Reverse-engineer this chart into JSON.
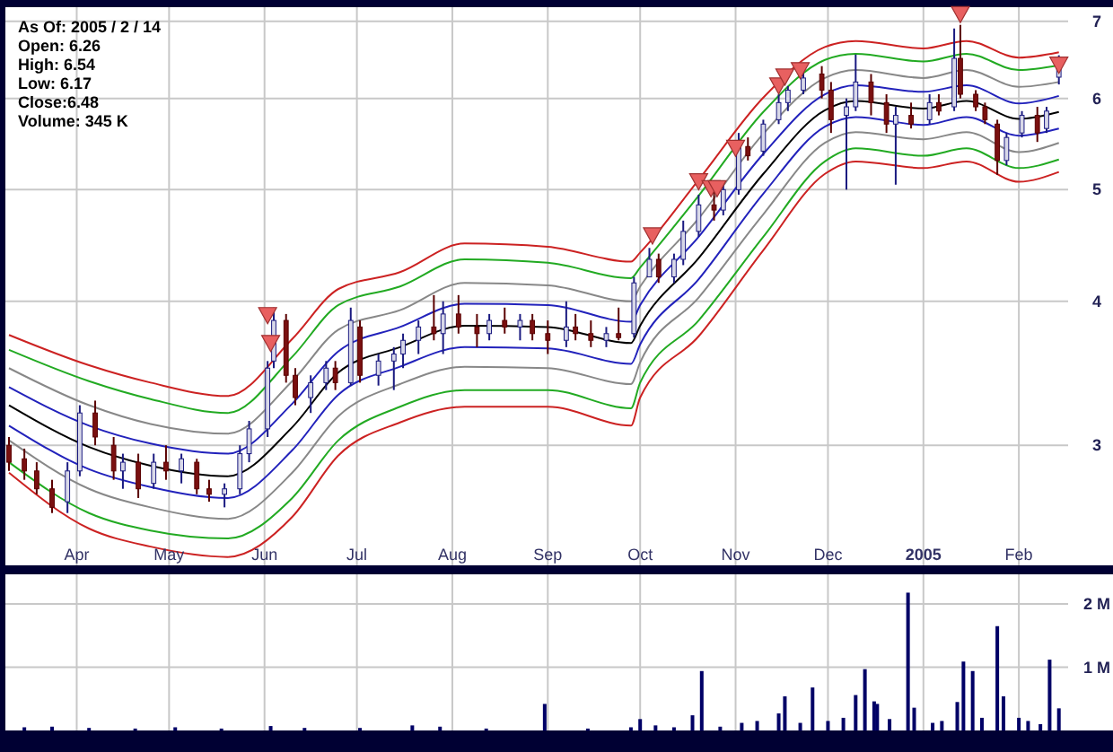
{
  "chart_data": [
    {
      "type": "candlestick",
      "annotations": [
        "As Of: 2005 / 2 / 14",
        "Open: 6.26",
        "High: 6.54",
        "Low: 6.17",
        "Close:6.48",
        "Volume: 345 K"
      ],
      "x": [
        "2004-03-10",
        "2004-03-15",
        "2004-03-19",
        "2004-03-24",
        "2004-03-29",
        "2004-04-02",
        "2004-04-07",
        "2004-04-13",
        "2004-04-16",
        "2004-04-21",
        "2004-04-26",
        "2004-04-30",
        "2004-05-05",
        "2004-05-10",
        "2004-05-14",
        "2004-05-19",
        "2004-05-24",
        "2004-05-27",
        "2004-06-02",
        "2004-06-04",
        "2004-06-08",
        "2004-06-11",
        "2004-06-16",
        "2004-06-21",
        "2004-06-24",
        "2004-06-29",
        "2004-07-02",
        "2004-07-08",
        "2004-07-13",
        "2004-07-16",
        "2004-07-21",
        "2004-07-26",
        "2004-07-29",
        "2004-08-03",
        "2004-08-09",
        "2004-08-13",
        "2004-08-18",
        "2004-08-23",
        "2004-08-27",
        "2004-09-01",
        "2004-09-07",
        "2004-09-10",
        "2004-09-15",
        "2004-09-20",
        "2004-09-24",
        "2004-09-29",
        "2004-10-04",
        "2004-10-07",
        "2004-10-12",
        "2004-10-15",
        "2004-10-20",
        "2004-10-25",
        "2004-10-28",
        "2004-11-02",
        "2004-11-05",
        "2004-11-10",
        "2004-11-15",
        "2004-11-18",
        "2004-11-23",
        "2004-11-29",
        "2004-12-02",
        "2004-12-07",
        "2004-12-10",
        "2004-12-15",
        "2004-12-20",
        "2004-12-23",
        "2004-12-28",
        "2005-01-03",
        "2005-01-06",
        "2005-01-11",
        "2005-01-13",
        "2005-01-18",
        "2005-01-21",
        "2005-01-25",
        "2005-01-28",
        "2005-02-02",
        "2005-02-07",
        "2005-02-10",
        "2005-02-14"
      ],
      "ohlc": [
        [
          3.0,
          3.05,
          2.85,
          2.9
        ],
        [
          2.92,
          2.98,
          2.8,
          2.85
        ],
        [
          2.85,
          2.9,
          2.72,
          2.75
        ],
        [
          2.75,
          2.8,
          2.62,
          2.65
        ],
        [
          2.68,
          2.9,
          2.62,
          2.85
        ],
        [
          2.85,
          3.25,
          2.82,
          3.2
        ],
        [
          3.2,
          3.28,
          3.0,
          3.05
        ],
        [
          3.0,
          3.05,
          2.8,
          2.85
        ],
        [
          2.85,
          2.95,
          2.75,
          2.9
        ],
        [
          2.9,
          2.95,
          2.7,
          2.75
        ],
        [
          2.78,
          2.95,
          2.75,
          2.9
        ],
        [
          2.9,
          3.0,
          2.8,
          2.85
        ],
        [
          2.85,
          2.95,
          2.78,
          2.92
        ],
        [
          2.9,
          2.92,
          2.72,
          2.75
        ],
        [
          2.75,
          2.8,
          2.68,
          2.72
        ],
        [
          2.72,
          2.78,
          2.65,
          2.75
        ],
        [
          2.75,
          3.0,
          2.72,
          2.95
        ],
        [
          2.95,
          3.15,
          2.9,
          3.1
        ],
        [
          3.1,
          3.55,
          3.05,
          3.5
        ],
        [
          3.55,
          3.95,
          3.5,
          3.85
        ],
        [
          3.85,
          3.9,
          3.4,
          3.45
        ],
        [
          3.45,
          3.5,
          3.25,
          3.3
        ],
        [
          3.3,
          3.45,
          3.2,
          3.4
        ],
        [
          3.4,
          3.55,
          3.35,
          3.5
        ],
        [
          3.5,
          3.55,
          3.35,
          3.4
        ],
        [
          3.4,
          3.95,
          3.38,
          3.85
        ],
        [
          3.8,
          3.85,
          3.4,
          3.45
        ],
        [
          3.45,
          3.6,
          3.38,
          3.55
        ],
        [
          3.55,
          3.65,
          3.35,
          3.6
        ],
        [
          3.6,
          3.75,
          3.5,
          3.7
        ],
        [
          3.7,
          3.85,
          3.6,
          3.8
        ],
        [
          3.8,
          4.05,
          3.7,
          3.75
        ],
        [
          3.75,
          4.0,
          3.6,
          3.9
        ],
        [
          3.9,
          4.05,
          3.75,
          3.8
        ],
        [
          3.8,
          3.9,
          3.65,
          3.75
        ],
        [
          3.75,
          3.9,
          3.7,
          3.85
        ],
        [
          3.85,
          3.95,
          3.75,
          3.8
        ],
        [
          3.8,
          3.9,
          3.7,
          3.85
        ],
        [
          3.85,
          3.9,
          3.7,
          3.75
        ],
        [
          3.75,
          3.85,
          3.6,
          3.7
        ],
        [
          3.7,
          4.0,
          3.65,
          3.8
        ],
        [
          3.8,
          3.9,
          3.7,
          3.75
        ],
        [
          3.75,
          3.85,
          3.65,
          3.7
        ],
        [
          3.7,
          3.8,
          3.65,
          3.75
        ],
        [
          3.75,
          3.95,
          3.7,
          3.72
        ],
        [
          3.75,
          4.2,
          3.72,
          4.15
        ],
        [
          4.2,
          4.45,
          4.2,
          4.35
        ],
        [
          4.35,
          4.4,
          4.15,
          4.2
        ],
        [
          4.2,
          4.4,
          4.15,
          4.35
        ],
        [
          4.35,
          4.7,
          4.3,
          4.6
        ],
        [
          4.6,
          4.95,
          4.55,
          4.85
        ],
        [
          4.85,
          5.0,
          4.7,
          4.8
        ],
        [
          4.8,
          5.05,
          4.75,
          5.0
        ],
        [
          5.0,
          5.6,
          4.95,
          5.45
        ],
        [
          5.45,
          5.55,
          5.3,
          5.35
        ],
        [
          5.4,
          5.75,
          5.35,
          5.7
        ],
        [
          5.75,
          6.05,
          5.7,
          5.95
        ],
        [
          5.95,
          6.15,
          5.85,
          6.1
        ],
        [
          6.1,
          6.35,
          6.05,
          6.25
        ],
        [
          6.3,
          6.4,
          6.0,
          6.1
        ],
        [
          6.1,
          6.2,
          5.6,
          5.75
        ],
        [
          5.8,
          6.0,
          5.0,
          5.9
        ],
        [
          5.9,
          6.55,
          5.85,
          6.2
        ],
        [
          6.2,
          6.3,
          5.8,
          5.95
        ],
        [
          5.95,
          6.05,
          5.6,
          5.7
        ],
        [
          5.7,
          5.9,
          5.05,
          5.8
        ],
        [
          5.8,
          5.95,
          5.65,
          5.7
        ],
        [
          5.75,
          6.05,
          5.7,
          5.95
        ],
        [
          5.95,
          6.05,
          5.8,
          5.85
        ],
        [
          5.9,
          6.9,
          5.85,
          6.5
        ],
        [
          6.5,
          6.95,
          6.0,
          6.05
        ],
        [
          6.05,
          6.1,
          5.85,
          5.9
        ],
        [
          5.9,
          5.95,
          5.7,
          5.75
        ],
        [
          5.7,
          5.75,
          5.15,
          5.3
        ],
        [
          5.3,
          5.6,
          5.25,
          5.55
        ],
        [
          5.6,
          5.85,
          5.55,
          5.8
        ],
        [
          5.8,
          5.9,
          5.5,
          5.6
        ],
        [
          5.65,
          5.9,
          5.6,
          5.85
        ],
        [
          6.26,
          6.54,
          6.17,
          6.48
        ]
      ],
      "series": [
        {
          "type": "line",
          "color": "#cc2222",
          "x": [
            "2004-03-10",
            "2004-04-05",
            "2004-04-25",
            "2004-05-20",
            "2004-06-10",
            "2004-06-25",
            "2004-07-15",
            "2004-08-05",
            "2004-09-01",
            "2004-09-28",
            "2004-10-01",
            "2004-10-20",
            "2004-11-10",
            "2004-11-30",
            "2004-12-10",
            "2005-01-01",
            "2005-01-15",
            "2005-02-01",
            "2005-02-14"
          ],
          "values": [
            3.74,
            3.52,
            3.4,
            3.31,
            3.71,
            4.1,
            4.24,
            4.49,
            4.46,
            4.33,
            4.41,
            5.1,
            6.01,
            6.65,
            6.73,
            6.63,
            6.73,
            6.51,
            6.58
          ]
        },
        {
          "type": "line",
          "color": "#22aa22",
          "x": [
            "2004-03-10",
            "2004-04-05",
            "2004-04-25",
            "2004-05-20",
            "2004-06-10",
            "2004-06-25",
            "2004-07-15",
            "2004-08-05",
            "2004-09-01",
            "2004-09-28",
            "2004-10-01",
            "2004-10-20",
            "2004-11-10",
            "2004-11-30",
            "2004-12-10",
            "2005-01-01",
            "2005-01-15",
            "2005-02-01",
            "2005-02-14"
          ],
          "values": [
            3.63,
            3.41,
            3.29,
            3.2,
            3.58,
            3.97,
            4.12,
            4.35,
            4.32,
            4.19,
            4.28,
            4.94,
            5.84,
            6.48,
            6.56,
            6.46,
            6.56,
            6.35,
            6.41
          ]
        },
        {
          "type": "line",
          "color": "#888888",
          "x": [
            "2004-03-10",
            "2004-04-05",
            "2004-04-25",
            "2004-05-20",
            "2004-06-10",
            "2004-06-25",
            "2004-07-15",
            "2004-08-05",
            "2004-09-01",
            "2004-09-28",
            "2004-10-01",
            "2004-10-20",
            "2004-11-10",
            "2004-11-30",
            "2004-12-10",
            "2005-01-01",
            "2005-01-15",
            "2005-02-01",
            "2005-02-14"
          ],
          "values": [
            3.5,
            3.25,
            3.13,
            3.07,
            3.41,
            3.78,
            3.93,
            4.15,
            4.13,
            4.0,
            4.12,
            4.72,
            5.59,
            6.25,
            6.35,
            6.25,
            6.35,
            6.14,
            6.2
          ]
        },
        {
          "type": "line",
          "color": "#2222bb",
          "x": [
            "2004-03-10",
            "2004-04-05",
            "2004-04-25",
            "2004-05-20",
            "2004-06-10",
            "2004-06-25",
            "2004-07-15",
            "2004-08-05",
            "2004-09-01",
            "2004-09-28",
            "2004-10-01",
            "2004-10-20",
            "2004-11-10",
            "2004-11-30",
            "2004-12-10",
            "2005-01-01",
            "2005-01-15",
            "2005-02-01",
            "2005-02-14"
          ],
          "values": [
            3.37,
            3.12,
            3.01,
            2.95,
            3.26,
            3.62,
            3.8,
            3.98,
            3.97,
            3.84,
            3.97,
            4.55,
            5.37,
            6.05,
            6.16,
            6.08,
            6.16,
            5.94,
            6.03
          ]
        },
        {
          "type": "line",
          "color": "#000000",
          "x": [
            "2004-03-10",
            "2004-04-05",
            "2004-04-25",
            "2004-05-20",
            "2004-06-10",
            "2004-06-25",
            "2004-07-15",
            "2004-08-05",
            "2004-09-01",
            "2004-09-28",
            "2004-10-01",
            "2004-10-20",
            "2004-11-10",
            "2004-11-30",
            "2004-12-10",
            "2005-01-01",
            "2005-01-15",
            "2005-02-01",
            "2005-02-14"
          ],
          "values": [
            3.25,
            2.99,
            2.88,
            2.82,
            3.11,
            3.47,
            3.65,
            3.81,
            3.8,
            3.68,
            3.81,
            4.36,
            5.16,
            5.86,
            5.97,
            5.88,
            5.97,
            5.76,
            5.84
          ]
        },
        {
          "type": "line",
          "color": "#2222bb",
          "x": [
            "2004-03-10",
            "2004-04-05",
            "2004-04-25",
            "2004-05-20",
            "2004-06-10",
            "2004-06-25",
            "2004-07-15",
            "2004-08-05",
            "2004-09-01",
            "2004-09-28",
            "2004-10-01",
            "2004-10-20",
            "2004-11-10",
            "2004-11-30",
            "2004-12-10",
            "2005-01-01",
            "2005-01-15",
            "2005-02-01",
            "2005-02-14"
          ],
          "values": [
            3.12,
            2.86,
            2.76,
            2.7,
            2.97,
            3.32,
            3.51,
            3.65,
            3.64,
            3.53,
            3.67,
            4.18,
            4.96,
            5.67,
            5.78,
            5.69,
            5.78,
            5.57,
            5.65
          ]
        },
        {
          "type": "line",
          "color": "#888888",
          "x": [
            "2004-03-10",
            "2004-04-05",
            "2004-04-25",
            "2004-05-20",
            "2004-06-10",
            "2004-06-25",
            "2004-07-15",
            "2004-08-05",
            "2004-09-01",
            "2004-09-28",
            "2004-10-01",
            "2004-10-20",
            "2004-11-10",
            "2004-11-30",
            "2004-12-10",
            "2005-01-01",
            "2005-01-15",
            "2005-02-01",
            "2005-02-14"
          ],
          "values": [
            3.03,
            2.75,
            2.65,
            2.59,
            2.84,
            3.18,
            3.39,
            3.51,
            3.5,
            3.39,
            3.54,
            4.03,
            4.76,
            5.49,
            5.61,
            5.53,
            5.61,
            5.39,
            5.49
          ]
        },
        {
          "type": "line",
          "color": "#22aa22",
          "x": [
            "2004-03-10",
            "2004-04-05",
            "2004-04-25",
            "2004-05-20",
            "2004-06-10",
            "2004-06-25",
            "2004-07-15",
            "2004-08-05",
            "2004-09-01",
            "2004-09-28",
            "2004-10-01",
            "2004-10-20",
            "2004-11-10",
            "2004-11-30",
            "2004-12-10",
            "2005-01-01",
            "2005-01-15",
            "2005-02-01",
            "2005-02-14"
          ],
          "values": [
            2.9,
            2.62,
            2.53,
            2.49,
            2.7,
            3.03,
            3.24,
            3.35,
            3.35,
            3.23,
            3.4,
            3.85,
            4.55,
            5.29,
            5.43,
            5.35,
            5.43,
            5.22,
            5.31
          ]
        },
        {
          "type": "line",
          "color": "#cc2222",
          "x": [
            "2004-03-10",
            "2004-04-05",
            "2004-04-25",
            "2004-05-20",
            "2004-06-10",
            "2004-06-25",
            "2004-07-15",
            "2004-08-05",
            "2004-09-01",
            "2004-09-28",
            "2004-10-01",
            "2004-10-20",
            "2004-11-10",
            "2004-11-30",
            "2004-12-10",
            "2005-01-01",
            "2005-01-15",
            "2005-02-01",
            "2005-02-14"
          ],
          "values": [
            2.84,
            2.54,
            2.45,
            2.4,
            2.6,
            2.94,
            3.14,
            3.24,
            3.24,
            3.12,
            3.3,
            3.73,
            4.43,
            5.16,
            5.29,
            5.22,
            5.29,
            5.08,
            5.18
          ]
        },
        {
          "type": "scatter",
          "color": "#e86060",
          "marker": "triangle",
          "x": [
            "2004-06-02",
            "2004-06-03",
            "2004-10-05",
            "2004-10-20",
            "2004-10-24",
            "2004-10-26",
            "2004-11-01",
            "2004-11-15",
            "2004-11-17",
            "2004-11-22",
            "2005-01-13",
            "2005-02-14"
          ],
          "values": [
            3.88,
            3.67,
            4.55,
            5.07,
            5.0,
            5.0,
            5.42,
            6.14,
            6.25,
            6.33,
            7.08,
            6.4
          ]
        }
      ],
      "xlim": [
        "2004-03-10",
        "2005-02-17"
      ],
      "ylim": [
        2.36,
        7.2
      ],
      "log": true,
      "yticks": [
        3,
        4,
        5,
        6,
        7
      ],
      "xticks": [
        {
          "value": "2004-04-01",
          "label": "Apr"
        },
        {
          "value": "2004-05-01",
          "label": "May"
        },
        {
          "value": "2004-06-01",
          "label": "Jun"
        },
        {
          "value": "2004-07-01",
          "label": "Jul"
        },
        {
          "value": "2004-08-01",
          "label": "Aug"
        },
        {
          "value": "2004-09-01",
          "label": "Sep"
        },
        {
          "value": "2004-10-01",
          "label": "Oct"
        },
        {
          "value": "2004-11-01",
          "label": "Nov"
        },
        {
          "value": "2004-12-01",
          "label": "Dec"
        },
        {
          "value": "2005-01-01",
          "label": "2005"
        },
        {
          "value": "2005-02-01",
          "label": "Feb"
        }
      ],
      "grid": true
    },
    {
      "type": "bar",
      "color": "#000066",
      "x": [
        "2004-03-15",
        "2004-03-24",
        "2004-04-05",
        "2004-04-20",
        "2004-05-03",
        "2004-05-18",
        "2004-06-03",
        "2004-06-14",
        "2004-07-02",
        "2004-07-19",
        "2004-07-28",
        "2004-08-12",
        "2004-08-31",
        "2004-09-14",
        "2004-09-28",
        "2004-10-01",
        "2004-10-06",
        "2004-10-12",
        "2004-10-18",
        "2004-10-21",
        "2004-10-27",
        "2004-11-03",
        "2004-11-08",
        "2004-11-15",
        "2004-11-17",
        "2004-11-22",
        "2004-11-26",
        "2004-12-01",
        "2004-12-06",
        "2004-12-10",
        "2004-12-13",
        "2004-12-16",
        "2004-12-17",
        "2004-12-21",
        "2004-12-27",
        "2004-12-29",
        "2005-01-04",
        "2005-01-07",
        "2005-01-12",
        "2005-01-14",
        "2005-01-17",
        "2005-01-20",
        "2005-01-25",
        "2005-01-27",
        "2005-02-01",
        "2005-02-04",
        "2005-02-08",
        "2005-02-11",
        "2005-02-14"
      ],
      "values": [
        50000,
        60000,
        40000,
        30000,
        50000,
        30000,
        70000,
        40000,
        40000,
        80000,
        60000,
        30000,
        420000,
        30000,
        50000,
        180000,
        80000,
        50000,
        240000,
        940000,
        60000,
        120000,
        150000,
        270000,
        540000,
        120000,
        680000,
        150000,
        200000,
        560000,
        970000,
        460000,
        420000,
        180000,
        2180000,
        360000,
        120000,
        150000,
        450000,
        1090000,
        940000,
        200000,
        1650000,
        540000,
        200000,
        150000,
        100000,
        1120000,
        350000
      ],
      "xlim": [
        "2004-03-10",
        "2005-02-17"
      ],
      "ylim": [
        0,
        2470000
      ],
      "yticks": [
        {
          "value": 1000000,
          "label": "1 M"
        },
        {
          "value": 2000000,
          "label": "2 M"
        }
      ],
      "xticks": [
        {
          "value": "2004-04-01",
          "label": null
        },
        {
          "value": "2004-05-01",
          "label": null
        },
        {
          "value": "2004-06-01",
          "label": null
        },
        {
          "value": "2004-07-01",
          "label": null
        },
        {
          "value": "2004-08-01",
          "label": null
        },
        {
          "value": "2004-09-01",
          "label": null
        },
        {
          "value": "2004-10-01",
          "label": null
        },
        {
          "value": "2004-11-01",
          "label": null
        },
        {
          "value": "2004-12-01",
          "label": null
        },
        {
          "value": "2005-01-01",
          "label": null
        },
        {
          "value": "2005-02-01",
          "label": null
        }
      ],
      "grid": true,
      "tick_labels": "y"
    }
  ]
}
